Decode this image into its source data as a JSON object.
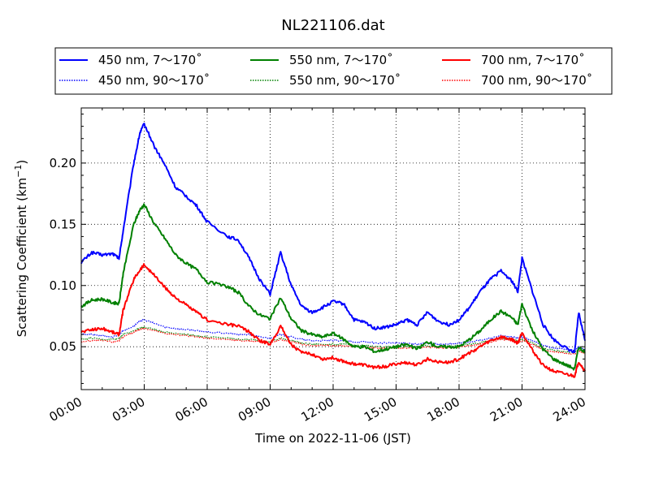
{
  "chart_data": {
    "type": "line",
    "title": "NL221106.dat",
    "xlabel": "Time on 2022-11-06 (JST)",
    "ylabel": "Scattering Coefficient (km⁻¹)",
    "xlim": [
      "00:00",
      "24:00"
    ],
    "ylim": [
      0.015,
      0.245
    ],
    "grid": true,
    "legend_placement": "top, above plot, 3 columns",
    "x_ticks": [
      "00:00",
      "03:00",
      "06:00",
      "09:00",
      "12:00",
      "15:00",
      "18:00",
      "21:00",
      "24:00"
    ],
    "y_ticks": [
      "0.05",
      "0.10",
      "0.15",
      "0.20"
    ],
    "x_hours": [
      0,
      0.5,
      1,
      1.5,
      1.8,
      2,
      2.5,
      2.8,
      3,
      3.5,
      4,
      4.5,
      5,
      5.5,
      6,
      7,
      7.5,
      8,
      8.5,
      9,
      9.5,
      10,
      10.5,
      11,
      11.5,
      12,
      12.5,
      13,
      13.5,
      14,
      14.5,
      15,
      15.5,
      16,
      16.5,
      17,
      17.5,
      18,
      18.5,
      19,
      19.5,
      20,
      20.5,
      20.8,
      21,
      21.5,
      22,
      22.5,
      23,
      23.5,
      23.7,
      24
    ],
    "series": [
      {
        "name": "450 nm, 7～170˚",
        "color": "#0000ff",
        "style": "solid",
        "values": [
          0.119,
          0.127,
          0.125,
          0.126,
          0.122,
          0.145,
          0.2,
          0.225,
          0.232,
          0.213,
          0.198,
          0.18,
          0.173,
          0.165,
          0.152,
          0.14,
          0.137,
          0.122,
          0.105,
          0.093,
          0.127,
          0.1,
          0.083,
          0.078,
          0.082,
          0.087,
          0.085,
          0.072,
          0.07,
          0.065,
          0.066,
          0.068,
          0.072,
          0.068,
          0.078,
          0.071,
          0.068,
          0.072,
          0.082,
          0.095,
          0.105,
          0.112,
          0.104,
          0.095,
          0.122,
          0.095,
          0.068,
          0.056,
          0.05,
          0.045,
          0.078,
          0.055
        ]
      },
      {
        "name": "450 nm, 90～170˚",
        "color": "#0000ff",
        "style": "dotted",
        "values": [
          0.06,
          0.06,
          0.059,
          0.058,
          0.06,
          0.063,
          0.067,
          0.071,
          0.072,
          0.069,
          0.066,
          0.065,
          0.064,
          0.063,
          0.062,
          0.061,
          0.06,
          0.06,
          0.058,
          0.057,
          0.06,
          0.058,
          0.056,
          0.055,
          0.055,
          0.055,
          0.055,
          0.054,
          0.054,
          0.053,
          0.053,
          0.053,
          0.053,
          0.052,
          0.053,
          0.052,
          0.052,
          0.053,
          0.054,
          0.055,
          0.057,
          0.059,
          0.058,
          0.057,
          0.058,
          0.055,
          0.051,
          0.049,
          0.048,
          0.047,
          0.05,
          0.047
        ]
      },
      {
        "name": "550 nm, 7～170˚",
        "color": "#008000",
        "style": "solid",
        "values": [
          0.083,
          0.088,
          0.089,
          0.086,
          0.085,
          0.11,
          0.15,
          0.162,
          0.166,
          0.15,
          0.138,
          0.125,
          0.118,
          0.113,
          0.103,
          0.099,
          0.094,
          0.083,
          0.076,
          0.073,
          0.09,
          0.073,
          0.063,
          0.06,
          0.058,
          0.061,
          0.056,
          0.05,
          0.05,
          0.046,
          0.048,
          0.05,
          0.052,
          0.048,
          0.054,
          0.05,
          0.05,
          0.05,
          0.056,
          0.063,
          0.072,
          0.079,
          0.074,
          0.068,
          0.085,
          0.063,
          0.048,
          0.04,
          0.036,
          0.032,
          0.05,
          0.045
        ]
      },
      {
        "name": "550 nm, 90～170˚",
        "color": "#008000",
        "style": "dotted",
        "values": [
          0.056,
          0.057,
          0.056,
          0.056,
          0.057,
          0.06,
          0.063,
          0.065,
          0.066,
          0.064,
          0.062,
          0.061,
          0.06,
          0.059,
          0.058,
          0.057,
          0.056,
          0.056,
          0.055,
          0.054,
          0.057,
          0.055,
          0.053,
          0.052,
          0.052,
          0.052,
          0.052,
          0.051,
          0.051,
          0.05,
          0.05,
          0.05,
          0.05,
          0.05,
          0.051,
          0.05,
          0.05,
          0.051,
          0.052,
          0.053,
          0.055,
          0.057,
          0.056,
          0.055,
          0.056,
          0.053,
          0.049,
          0.047,
          0.046,
          0.045,
          0.048,
          0.045
        ]
      },
      {
        "name": "700 nm, 7～170˚",
        "color": "#ff0000",
        "style": "solid",
        "values": [
          0.062,
          0.064,
          0.065,
          0.062,
          0.06,
          0.08,
          0.105,
          0.113,
          0.117,
          0.108,
          0.098,
          0.09,
          0.084,
          0.078,
          0.072,
          0.068,
          0.067,
          0.062,
          0.055,
          0.052,
          0.067,
          0.052,
          0.045,
          0.044,
          0.04,
          0.041,
          0.038,
          0.036,
          0.035,
          0.033,
          0.034,
          0.036,
          0.037,
          0.035,
          0.04,
          0.038,
          0.037,
          0.04,
          0.045,
          0.05,
          0.055,
          0.058,
          0.056,
          0.053,
          0.062,
          0.047,
          0.035,
          0.03,
          0.028,
          0.026,
          0.038,
          0.03
        ]
      },
      {
        "name": "700 nm, 90～170˚",
        "color": "#ff0000",
        "style": "dotted",
        "values": [
          0.054,
          0.055,
          0.055,
          0.054,
          0.055,
          0.058,
          0.062,
          0.064,
          0.065,
          0.063,
          0.061,
          0.06,
          0.059,
          0.058,
          0.057,
          0.056,
          0.055,
          0.055,
          0.054,
          0.053,
          0.056,
          0.054,
          0.052,
          0.051,
          0.051,
          0.051,
          0.051,
          0.05,
          0.05,
          0.049,
          0.049,
          0.049,
          0.049,
          0.049,
          0.05,
          0.049,
          0.049,
          0.05,
          0.051,
          0.052,
          0.054,
          0.056,
          0.055,
          0.054,
          0.055,
          0.052,
          0.048,
          0.046,
          0.045,
          0.044,
          0.047,
          0.044
        ]
      }
    ]
  }
}
